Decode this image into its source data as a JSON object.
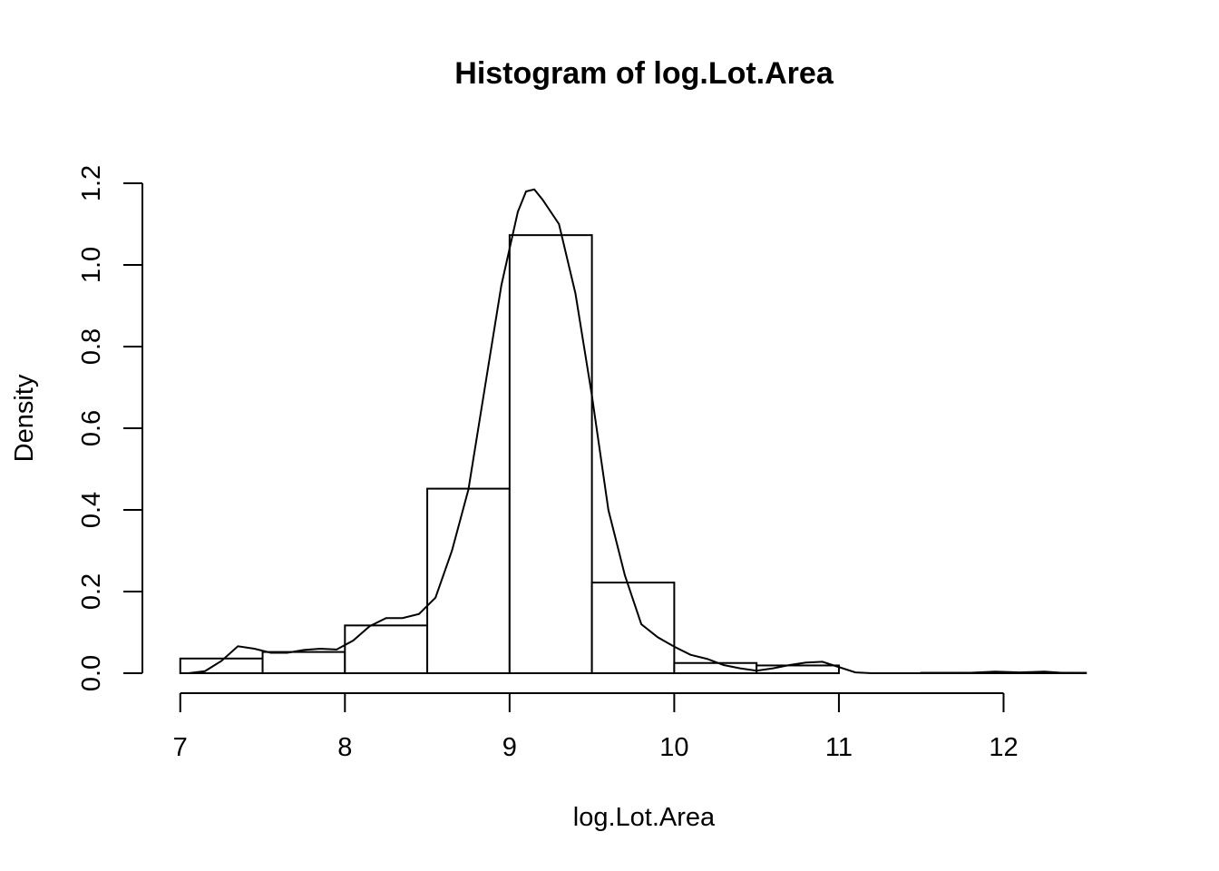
{
  "chart_data": {
    "type": "bar",
    "title": "Histogram of log.Lot.Area",
    "xlabel": "log.Lot.Area",
    "ylabel": "Density",
    "bins": [
      {
        "from": 7.0,
        "to": 7.5,
        "density": 0.036
      },
      {
        "from": 7.5,
        "to": 8.0,
        "density": 0.052
      },
      {
        "from": 8.0,
        "to": 8.5,
        "density": 0.117
      },
      {
        "from": 8.5,
        "to": 9.0,
        "density": 0.452
      },
      {
        "from": 9.0,
        "to": 9.5,
        "density": 1.073
      },
      {
        "from": 9.5,
        "to": 10.0,
        "density": 0.222
      },
      {
        "from": 10.0,
        "to": 10.5,
        "density": 0.025
      },
      {
        "from": 10.5,
        "to": 11.0,
        "density": 0.019
      },
      {
        "from": 11.0,
        "to": 11.5,
        "density": 0.0
      },
      {
        "from": 11.5,
        "to": 12.0,
        "density": 0.001
      },
      {
        "from": 12.0,
        "to": 12.5,
        "density": 0.001
      }
    ],
    "density_curve": {
      "x": [
        7.05,
        7.15,
        7.25,
        7.35,
        7.45,
        7.55,
        7.65,
        7.75,
        7.85,
        7.95,
        8.05,
        8.15,
        8.25,
        8.35,
        8.45,
        8.55,
        8.65,
        8.75,
        8.85,
        8.95,
        9.05,
        9.1,
        9.15,
        9.2,
        9.3,
        9.4,
        9.5,
        9.6,
        9.7,
        9.8,
        9.9,
        10.0,
        10.1,
        10.2,
        10.3,
        10.4,
        10.5,
        10.6,
        10.7,
        10.8,
        10.9,
        11.0,
        11.1,
        11.2,
        11.5,
        11.8,
        11.95,
        12.1,
        12.25,
        12.35,
        12.5
      ],
      "y": [
        0.0,
        0.005,
        0.03,
        0.066,
        0.06,
        0.05,
        0.05,
        0.057,
        0.06,
        0.058,
        0.08,
        0.115,
        0.135,
        0.135,
        0.145,
        0.185,
        0.3,
        0.45,
        0.7,
        0.95,
        1.13,
        1.18,
        1.185,
        1.16,
        1.1,
        0.93,
        0.68,
        0.4,
        0.24,
        0.12,
        0.088,
        0.065,
        0.045,
        0.035,
        0.02,
        0.012,
        0.006,
        0.012,
        0.02,
        0.026,
        0.028,
        0.015,
        0.002,
        0.0,
        0.0,
        0.001,
        0.004,
        0.002,
        0.004,
        0.001,
        0.0
      ]
    },
    "xticks": [
      "7",
      "8",
      "9",
      "10",
      "11",
      "12"
    ],
    "yticks": [
      "0.0",
      "0.2",
      "0.4",
      "0.6",
      "0.8",
      "1.0",
      "1.2"
    ],
    "xlim": [
      6.77,
      12.73
    ],
    "ylim": [
      0,
      1.2
    ],
    "grid": false
  }
}
